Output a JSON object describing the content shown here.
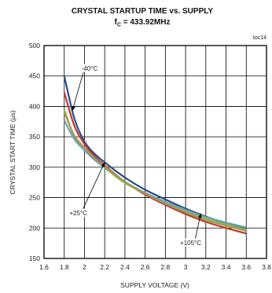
{
  "chart_data": {
    "type": "line",
    "title": "CRYSTAL STARTUP TIME vs. SUPPLY",
    "subtitle_prefix": "f",
    "subtitle_sub": "C",
    "subtitle_rest": " = 433.92MHz",
    "figure_id": "toc14",
    "xlabel": "SUPPLY VOLTAGE (V)",
    "ylabel": "CRYSTAL START TIME (µs)",
    "xlim": [
      1.6,
      3.8
    ],
    "ylim": [
      150,
      500
    ],
    "x_ticks": [
      1.6,
      1.8,
      2,
      2.2,
      2.4,
      2.6,
      2.8,
      3,
      3.2,
      3.4,
      3.6,
      3.8
    ],
    "x_tick_labels": [
      "1.6",
      "1.8",
      "2",
      "2.2",
      "2.4",
      "2.6",
      "2.8",
      "3",
      "3.2",
      "3.4",
      "3.6",
      "3.8"
    ],
    "y_ticks": [
      150,
      200,
      250,
      300,
      350,
      400,
      450,
      500
    ],
    "y_tick_labels": [
      "150",
      "200",
      "250",
      "300",
      "350",
      "400",
      "450",
      "500"
    ],
    "grid": true,
    "x": [
      1.8,
      1.9,
      2.0,
      2.1,
      2.2,
      2.4,
      2.6,
      2.8,
      3.0,
      3.2,
      3.4,
      3.6
    ],
    "series": [
      {
        "name": "-40°C",
        "color": "#2b4a8c",
        "values": [
          450,
          380,
          342,
          322,
          308,
          283,
          263,
          247,
          232,
          219,
          208,
          198
        ]
      },
      {
        "name": "",
        "color": "#c0392b",
        "values": [
          423,
          368,
          338,
          318,
          303,
          276,
          255,
          238,
          223,
          210,
          200,
          191
        ]
      },
      {
        "name": "",
        "color": "#8cbf3f",
        "values": [
          395,
          350,
          330,
          313,
          299,
          274,
          257,
          241,
          227,
          215,
          206,
          197
        ]
      },
      {
        "name": "+25°C",
        "color": "#6aa0b8",
        "values": [
          377,
          346,
          328,
          312,
          300,
          276,
          258,
          243,
          230,
          218,
          209,
          201
        ]
      },
      {
        "name": "+105°C",
        "color": "#a59a55",
        "values": [
          390,
          352,
          332,
          315,
          301,
          276,
          257,
          240,
          226,
          213,
          204,
          195
        ]
      }
    ],
    "annotations": [
      {
        "text": "-40°C",
        "label_x": 2.05,
        "label_y": 462,
        "arrow_to_x": 1.88,
        "arrow_to_y": 393
      },
      {
        "text": "+25°C",
        "label_x": 1.94,
        "label_y": 224,
        "arrow_to_x": 2.2,
        "arrow_to_y": 308
      },
      {
        "text": "+105°C",
        "label_x": 3.05,
        "label_y": 175,
        "arrow_to_x": 3.15,
        "arrow_to_y": 224
      }
    ]
  }
}
